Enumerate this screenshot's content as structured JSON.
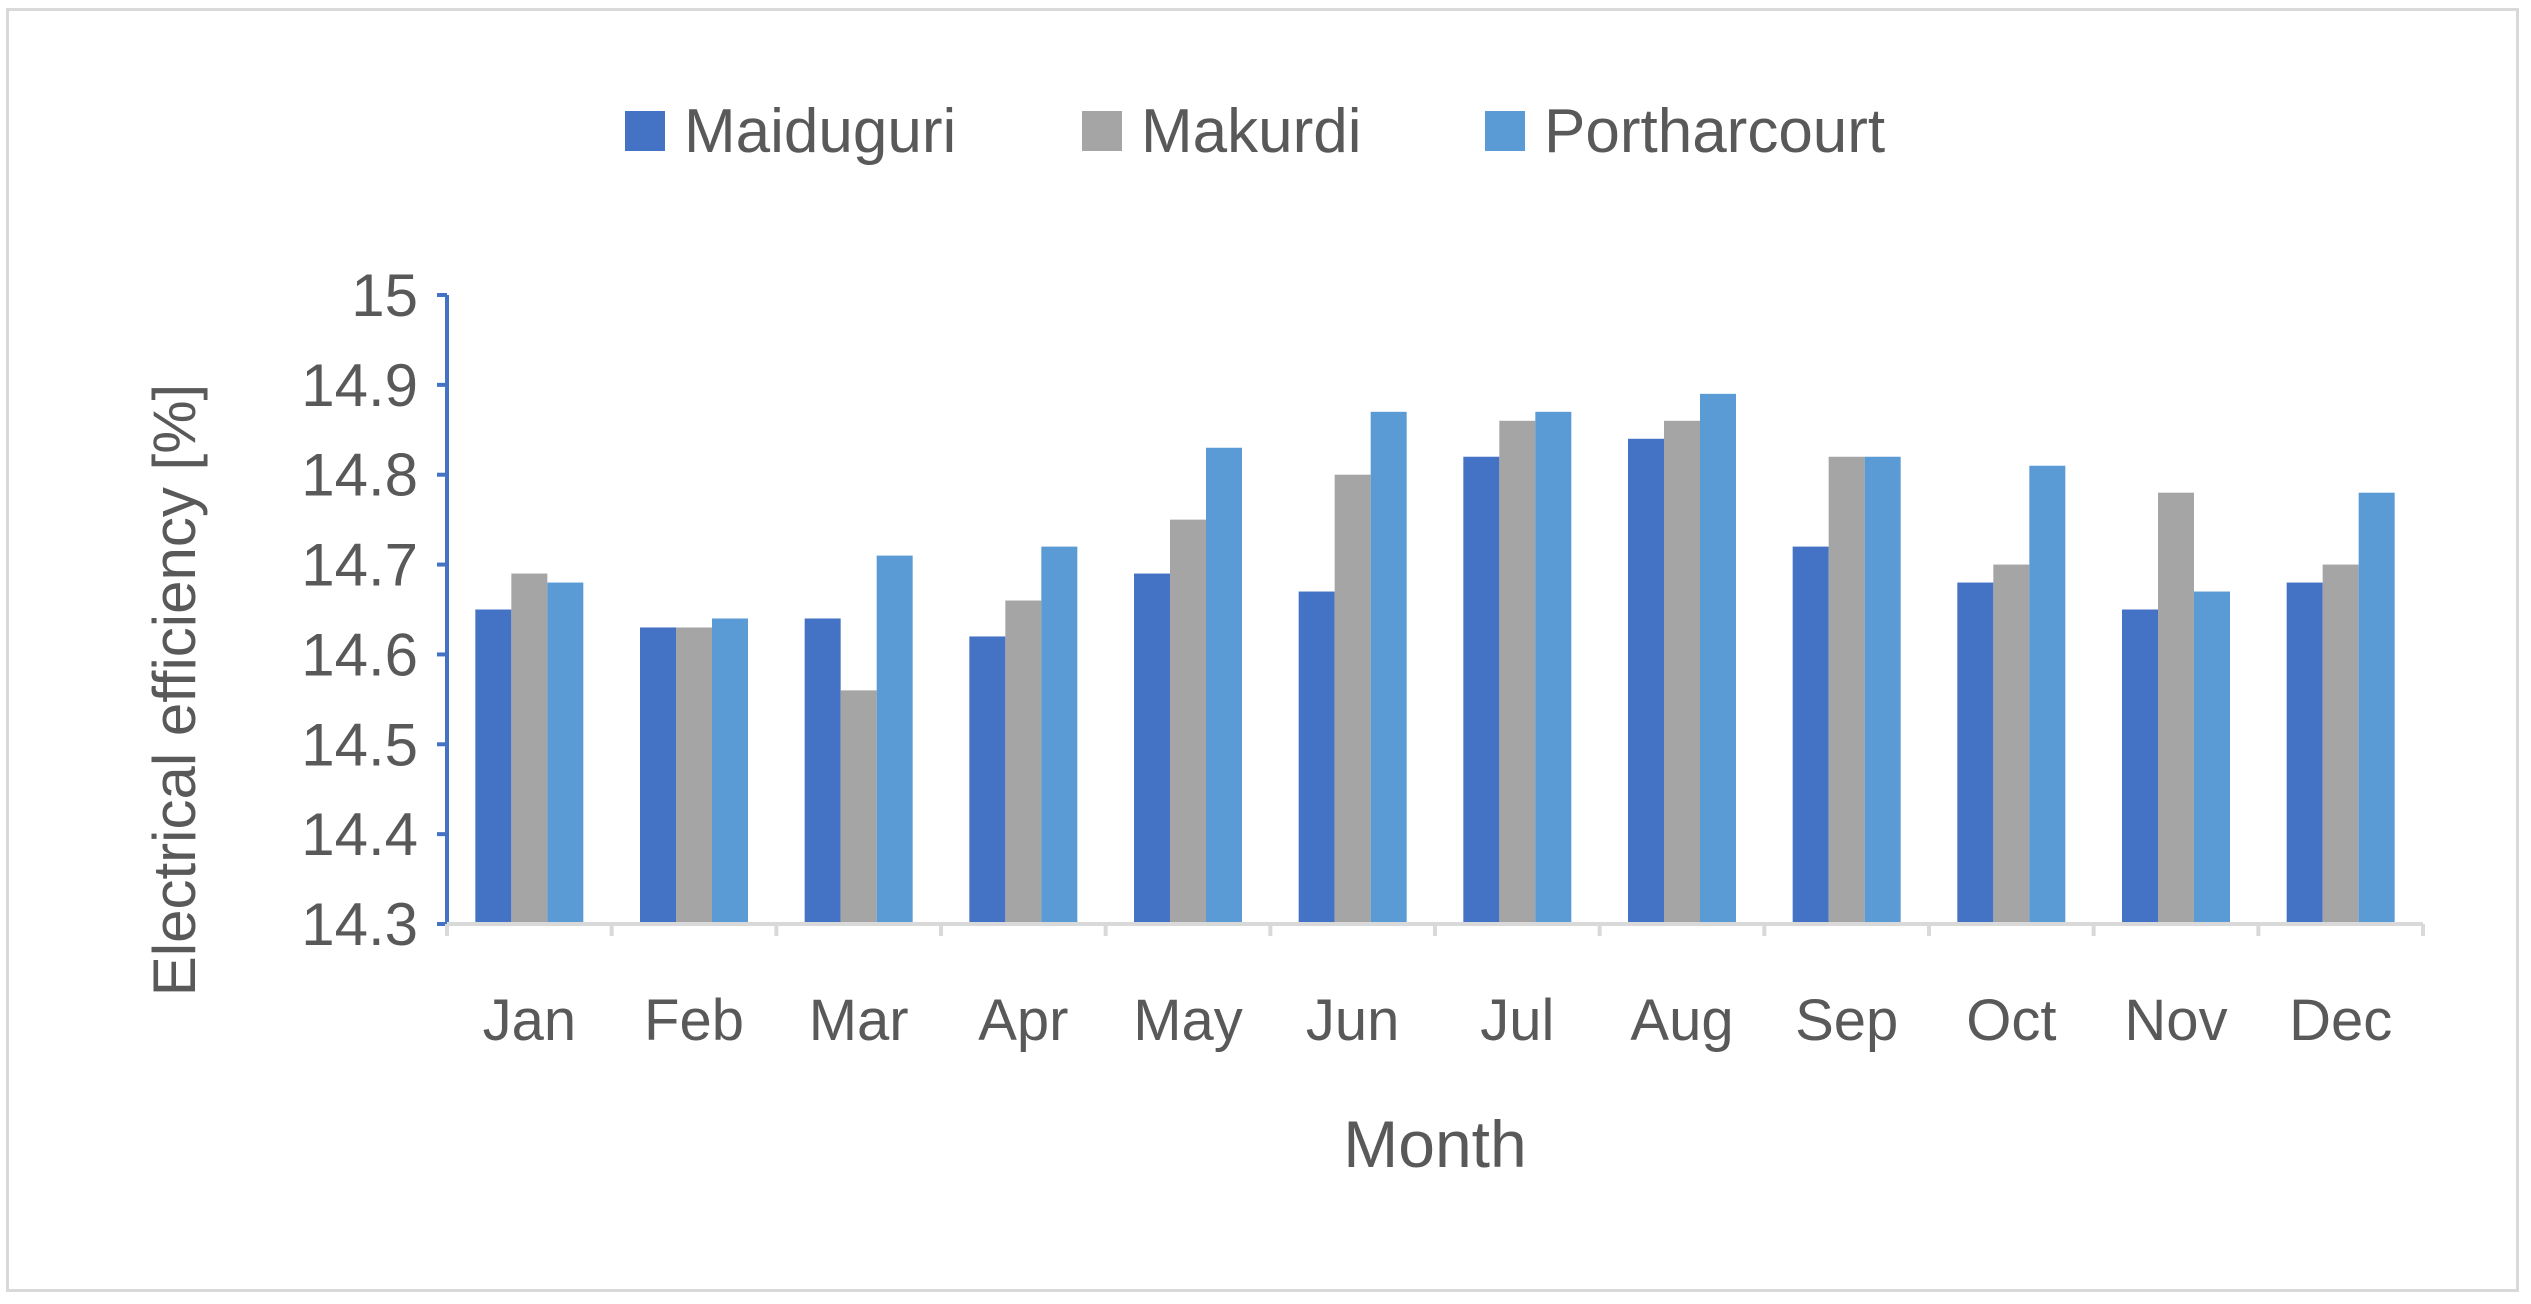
{
  "chart_data": {
    "type": "bar",
    "title": "",
    "xlabel": "Month",
    "ylabel": "Electrical efficiency [%]",
    "ylim": [
      14.3,
      15.0
    ],
    "yticks": [
      "14.3",
      "14.4",
      "14.5",
      "14.6",
      "14.7",
      "14.8",
      "14.9",
      "15"
    ],
    "grid": false,
    "legend_position": "top",
    "categories": [
      "Jan",
      "Feb",
      "Mar",
      "Apr",
      "May",
      "Jun",
      "Jul",
      "Aug",
      "Sep",
      "Oct",
      "Nov",
      "Dec"
    ],
    "series": [
      {
        "name": "Maiduguri",
        "color": "#4472c4",
        "values": [
          14.65,
          14.63,
          14.64,
          14.62,
          14.69,
          14.67,
          14.82,
          14.84,
          14.72,
          14.68,
          14.65,
          14.68
        ]
      },
      {
        "name": "Makurdi",
        "color": "#a5a5a5",
        "values": [
          14.69,
          14.63,
          14.56,
          14.66,
          14.75,
          14.8,
          14.86,
          14.86,
          14.82,
          14.7,
          14.78,
          14.7
        ]
      },
      {
        "name": "Portharcourt",
        "color": "#5b9bd5",
        "values": [
          14.68,
          14.64,
          14.71,
          14.72,
          14.83,
          14.87,
          14.87,
          14.89,
          14.82,
          14.81,
          14.67,
          14.78
        ]
      }
    ]
  }
}
